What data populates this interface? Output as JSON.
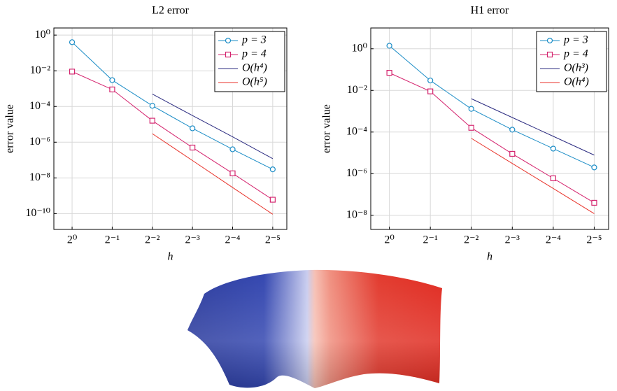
{
  "chart_data": [
    {
      "type": "line",
      "title": "L2 error",
      "xlabel": "h",
      "ylabel": "error value",
      "x": [
        1,
        0.5,
        0.25,
        0.125,
        0.0625,
        0.03125
      ],
      "xscale": "log",
      "yscale": "log",
      "grid": true,
      "legend": "northeast",
      "xlim": [
        1.37,
        0.0245
      ],
      "xticks": [
        {
          "value": 1,
          "label": "2⁰"
        },
        {
          "value": 0.5,
          "label": "2⁻¹"
        },
        {
          "value": 0.25,
          "label": "2⁻²"
        },
        {
          "value": 0.125,
          "label": "2⁻³"
        },
        {
          "value": 0.0625,
          "label": "2⁻⁴"
        },
        {
          "value": 0.03125,
          "label": "2⁻⁵"
        }
      ],
      "ylim": [
        1.3e-11,
        2.5
      ],
      "yticks": [
        {
          "value": 1,
          "label": "10⁰"
        },
        {
          "value": 0.01,
          "label": "10⁻²"
        },
        {
          "value": 0.0001,
          "label": "10⁻⁴"
        },
        {
          "value": 1e-06,
          "label": "10⁻⁶"
        },
        {
          "value": 1e-08,
          "label": "10⁻⁸"
        },
        {
          "value": 1e-10,
          "label": "10⁻¹⁰"
        }
      ],
      "series": [
        {
          "name": "p = 3",
          "color": "#1a8cc6",
          "marker": "circle",
          "values": [
            0.4,
            0.003,
            0.00011,
            6e-06,
            4e-07,
            3e-08
          ]
        },
        {
          "name": "p = 4",
          "color": "#d4246e",
          "marker": "square",
          "values": [
            0.009,
            0.0009,
            1.6e-05,
            5e-07,
            1.8e-08,
            6e-10
          ]
        },
        {
          "name": "O(h⁴)",
          "color": "#2b2b80",
          "values": [
            null,
            null,
            0.0005,
            3.1e-05,
            2e-06,
            1.2e-07
          ]
        },
        {
          "name": "O(h⁵)",
          "color": "#e8322a",
          "values": [
            null,
            null,
            3e-06,
            9.4e-08,
            2.9e-09,
            9.2e-11
          ]
        }
      ]
    },
    {
      "type": "line",
      "title": "H1 error",
      "xlabel": "h",
      "ylabel": "error value",
      "x": [
        1,
        0.5,
        0.25,
        0.125,
        0.0625,
        0.03125
      ],
      "xscale": "log",
      "yscale": "log",
      "grid": true,
      "legend": "northeast",
      "xlim": [
        1.37,
        0.0245
      ],
      "xticks": [
        {
          "value": 1,
          "label": "2⁰"
        },
        {
          "value": 0.5,
          "label": "2⁻¹"
        },
        {
          "value": 0.25,
          "label": "2⁻²"
        },
        {
          "value": 0.125,
          "label": "2⁻³"
        },
        {
          "value": 0.0625,
          "label": "2⁻⁴"
        },
        {
          "value": 0.03125,
          "label": "2⁻⁵"
        }
      ],
      "ylim": [
        2.1e-09,
        10
      ],
      "yticks": [
        {
          "value": 1,
          "label": "10⁰"
        },
        {
          "value": 0.01,
          "label": "10⁻²"
        },
        {
          "value": 0.0001,
          "label": "10⁻⁴"
        },
        {
          "value": 1e-06,
          "label": "10⁻⁶"
        },
        {
          "value": 1e-08,
          "label": "10⁻⁸"
        }
      ],
      "series": [
        {
          "name": "p = 3",
          "color": "#1a8cc6",
          "marker": "circle",
          "values": [
            1.4,
            0.03,
            0.0013,
            0.00013,
            1.6e-05,
            2e-06
          ]
        },
        {
          "name": "p = 4",
          "color": "#d4246e",
          "marker": "square",
          "values": [
            0.07,
            0.009,
            0.00016,
            9e-06,
            6e-07,
            4e-08
          ]
        },
        {
          "name": "O(h³)",
          "color": "#2b2b80",
          "values": [
            null,
            null,
            0.004,
            0.0005,
            6.25e-05,
            7.8e-06
          ]
        },
        {
          "name": "O(h⁴)",
          "color": "#e8322a",
          "values": [
            null,
            null,
            5e-05,
            3.1e-06,
            1.95e-07,
            1.2e-08
          ]
        }
      ]
    }
  ]
}
